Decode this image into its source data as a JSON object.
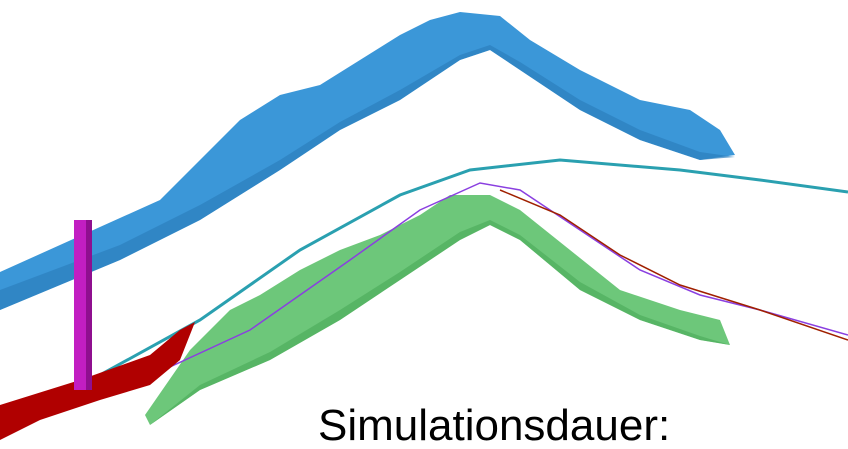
{
  "caption": "Simulationsdauer:"
}
